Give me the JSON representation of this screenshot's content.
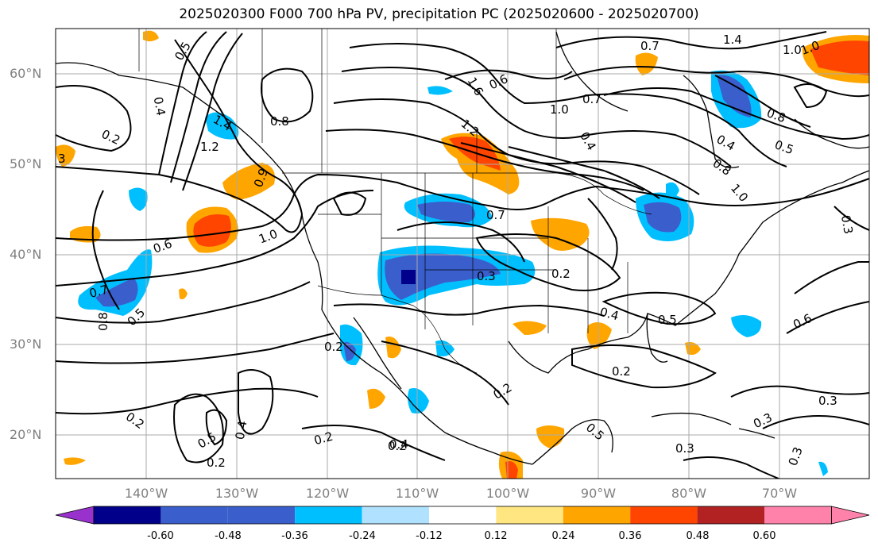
{
  "title": "2025020300 F000 700 hPa PV, precipitation PC (2025020600 - 2025020700)",
  "lat_labels": [
    "60°N",
    "50°N",
    "40°N",
    "30°N",
    "20°N"
  ],
  "lon_labels": [
    "140°W",
    "130°W",
    "120°W",
    "110°W",
    "100°W",
    "90°W",
    "80°W",
    "70°W"
  ],
  "colorbar": {
    "ticks": [
      "-0.60",
      "-0.48",
      "-0.36",
      "-0.24",
      "-0.12",
      "0.12",
      "0.24",
      "0.36",
      "0.48",
      "0.60"
    ],
    "colors": [
      "#9932cc",
      "#00008b",
      "#3a5fcd",
      "#00bfff",
      "#b0e2ff",
      "#ffffff",
      "#ffe680",
      "#ffa500",
      "#ff4500",
      "#b22222",
      "#ff82ab"
    ]
  },
  "contour_labels": [
    "0.5",
    "0.4",
    "0.2",
    "1.2",
    "1.4",
    "0.8",
    "3",
    "0.9",
    "1.0",
    "0.6",
    "0.7",
    "0.5",
    "0.8",
    "1.6",
    "1.2",
    "0.6",
    "1.0",
    "0.7",
    "0.4",
    "1.4",
    "1.0",
    "0.8",
    "0.5",
    "0.4",
    "0.8",
    "1.0",
    "0.7",
    "0.3",
    "0.2",
    "0.2",
    "0.3",
    "0.2",
    "0.4",
    "0.5",
    "0.6",
    "0.2",
    "0.2",
    "0.3",
    "0.5",
    "0.4",
    "0.2",
    "0.2",
    "0.4",
    "0.3",
    "0.3",
    "0.3",
    "0.2",
    "1.0",
    "0.7",
    "0.5"
  ]
}
